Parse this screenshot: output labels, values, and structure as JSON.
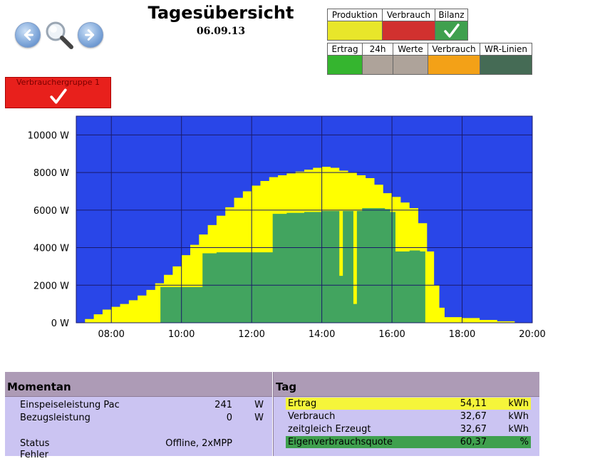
{
  "header": {
    "title": "Tagesübersicht",
    "date": "06.09.13"
  },
  "nav": {
    "prev_icon": "arrow-left-icon",
    "zoom_icon": "magnifier-icon",
    "next_icon": "arrow-right-icon"
  },
  "toggles_row1": [
    {
      "label": "Produktion",
      "color": "#e8e62a",
      "checked": false
    },
    {
      "label": "Verbrauch",
      "color": "#d1312f",
      "checked": false
    },
    {
      "label": "Bilanz",
      "color": "#3fa04e",
      "checked": true
    }
  ],
  "toggles_row2": [
    {
      "label": "Ertrag",
      "color": "#35b52f"
    },
    {
      "label": "24h",
      "color": "#aea39a"
    },
    {
      "label": "Werte",
      "color": "#aea39a"
    },
    {
      "label": "Verbrauch",
      "color": "#f3a117"
    },
    {
      "label": "WR-Linien",
      "color": "#456b55"
    }
  ],
  "verbrauchergruppe": {
    "label": "Verbrauchergruppe 1",
    "checked": true,
    "color": "#e8201c"
  },
  "chart_data": {
    "type": "area",
    "background": "#2946e8",
    "x_ticks": [
      "08:00",
      "10:00",
      "12:00",
      "14:00",
      "16:00",
      "18:00",
      "20:00"
    ],
    "y_ticks": [
      "0 W",
      "2000 W",
      "4000 W",
      "6000 W",
      "8000 W",
      "10000 W"
    ],
    "xlim": [
      7,
      20
    ],
    "ylim": [
      0,
      11000
    ],
    "series": [
      {
        "color": "#ffff00",
        "x": [
          7.0,
          7.25,
          7.5,
          7.75,
          8.0,
          8.25,
          8.5,
          8.75,
          9.0,
          9.25,
          9.5,
          9.75,
          10.0,
          10.25,
          10.5,
          10.75,
          11.0,
          11.25,
          11.5,
          11.75,
          12.0,
          12.25,
          12.5,
          12.75,
          13.0,
          13.25,
          13.5,
          13.75,
          14.0,
          14.25,
          14.5,
          14.75,
          15.0,
          15.25,
          15.5,
          15.75,
          16.0,
          16.25,
          16.5,
          16.75,
          17.0,
          17.2,
          17.35,
          17.5,
          17.75,
          18.0,
          18.5,
          19.0,
          19.5,
          20.0
        ],
        "values": [
          0,
          200,
          450,
          700,
          850,
          1000,
          1200,
          1450,
          1750,
          2100,
          2550,
          3000,
          3600,
          4150,
          4700,
          5200,
          5700,
          6150,
          6650,
          7000,
          7300,
          7550,
          7750,
          7850,
          7950,
          8050,
          8150,
          8250,
          8300,
          8250,
          8100,
          8000,
          7850,
          7700,
          7350,
          6900,
          6700,
          6400,
          6100,
          5300,
          3800,
          2000,
          800,
          300,
          300,
          250,
          150,
          80,
          20,
          0
        ]
      },
      {
        "color": "#42a45f",
        "x": [
          7.0,
          9.4,
          9.4,
          10.6,
          10.6,
          11.0,
          11.5,
          12.0,
          12.4,
          12.6,
          13.0,
          13.5,
          14.0,
          14.5,
          14.5,
          14.6,
          14.6,
          14.9,
          14.9,
          15.0,
          15.0,
          15.15,
          15.15,
          15.5,
          15.8,
          15.95,
          15.95,
          16.1,
          16.1,
          16.5,
          16.8,
          16.95,
          16.95,
          17.0,
          20.0
        ],
        "values": [
          0,
          0,
          1900,
          2000,
          3700,
          3750,
          3750,
          3750,
          3750,
          5800,
          5850,
          5900,
          5950,
          5950,
          2500,
          2500,
          5950,
          5950,
          1000,
          1000,
          5950,
          5950,
          6100,
          6100,
          6050,
          6050,
          5900,
          5900,
          3800,
          3850,
          3800,
          3800,
          0,
          0,
          0
        ]
      }
    ]
  },
  "momentan": {
    "title": "Momentan",
    "rows": [
      {
        "label": "Einspeiseleistung Pac",
        "value": "241",
        "unit": "W"
      },
      {
        "label": "Bezugsleistung",
        "value": "0",
        "unit": "W"
      },
      {
        "label": "Status",
        "value": "Offline, 2xMPP",
        "unit": ""
      },
      {
        "label": "Fehler",
        "value": "",
        "unit": ""
      }
    ]
  },
  "tag": {
    "title": "Tag",
    "rows": [
      {
        "label": "Ertrag",
        "value": "54,11",
        "unit": "kWh",
        "highlight": "#f5f53a"
      },
      {
        "label": "Verbrauch",
        "value": "32,67",
        "unit": "kWh",
        "highlight": ""
      },
      {
        "label": "zeitgleich Erzeugt",
        "value": "32,67",
        "unit": "kWh",
        "highlight": ""
      },
      {
        "label": "Eigenverbrauchsquote",
        "value": "60,37",
        "unit": "%",
        "highlight": "#3fa04e"
      }
    ]
  }
}
